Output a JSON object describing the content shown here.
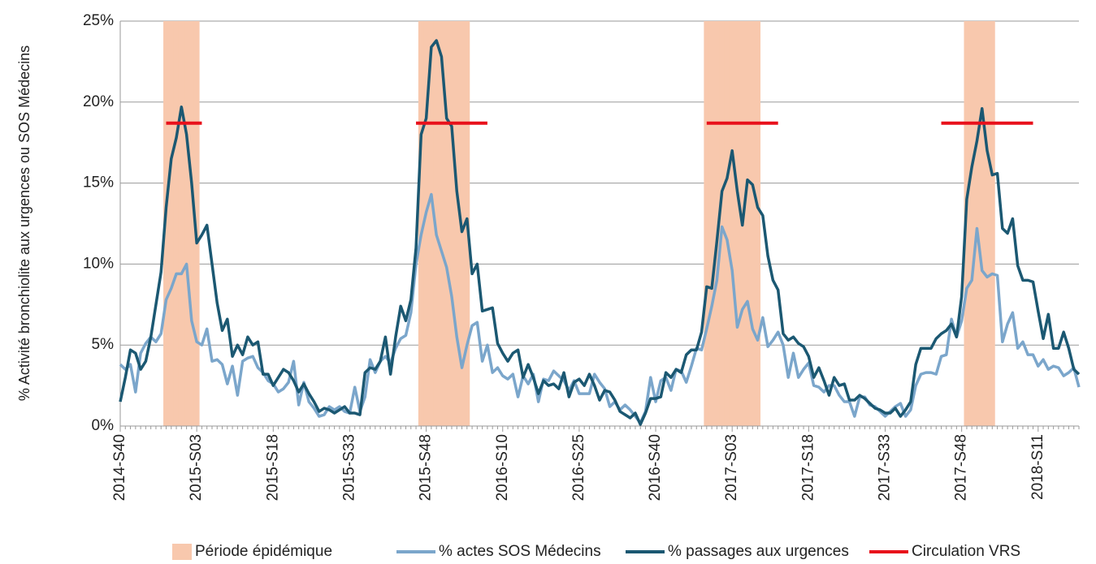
{
  "chart_data": {
    "type": "line",
    "y_label": "% Activité bronchiolite aux urgences ou SOS Médecins",
    "ylim": [
      0,
      25
    ],
    "yticks": [
      {
        "value": 0,
        "label": "0%"
      },
      {
        "value": 5,
        "label": "5%"
      },
      {
        "value": 10,
        "label": "10%"
      },
      {
        "value": 15,
        "label": "15%"
      },
      {
        "value": 20,
        "label": "20%"
      },
      {
        "value": 25,
        "label": "25%"
      }
    ],
    "grid": true,
    "legend": "bottom",
    "categories": [
      "2014-S40",
      null,
      null,
      null,
      null,
      null,
      null,
      null,
      null,
      null,
      null,
      null,
      null,
      null,
      null,
      "2015-S03",
      null,
      null,
      null,
      null,
      null,
      null,
      null,
      null,
      null,
      null,
      null,
      null,
      null,
      null,
      "2015-S18",
      null,
      null,
      null,
      null,
      null,
      null,
      null,
      null,
      null,
      null,
      null,
      null,
      null,
      null,
      "2015-S33",
      null,
      null,
      null,
      null,
      null,
      null,
      null,
      null,
      null,
      null,
      null,
      null,
      null,
      null,
      "2015-S48",
      null,
      null,
      null,
      null,
      null,
      null,
      null,
      null,
      null,
      null,
      null,
      null,
      null,
      null,
      "2016-S10",
      null,
      null,
      null,
      null,
      null,
      null,
      null,
      null,
      null,
      null,
      null,
      null,
      null,
      null,
      "2016-S25",
      null,
      null,
      null,
      null,
      null,
      null,
      null,
      null,
      null,
      null,
      null,
      null,
      null,
      null,
      "2016-S40",
      null,
      null,
      null,
      null,
      null,
      null,
      null,
      null,
      null,
      null,
      null,
      null,
      null,
      null,
      "2017-S03",
      null,
      null,
      null,
      null,
      null,
      null,
      null,
      null,
      null,
      null,
      null,
      null,
      null,
      null,
      "2017-S18",
      null,
      null,
      null,
      null,
      null,
      null,
      null,
      null,
      null,
      null,
      null,
      null,
      null,
      null,
      "2017-S33",
      null,
      null,
      null,
      null,
      null,
      null,
      null,
      null,
      null,
      null,
      null,
      null,
      null,
      null,
      "2017-S48",
      null,
      null,
      null,
      null,
      null,
      null,
      null,
      null,
      null,
      null,
      null,
      null,
      null,
      null,
      "2018-S11",
      null,
      null,
      null,
      null,
      null,
      null,
      null,
      null
    ],
    "series": [
      {
        "name": "Période épidémique",
        "color": "#f8c8ad",
        "kind": "bar",
        "values": [
          null,
          null,
          null,
          null,
          null,
          null,
          null,
          null,
          null,
          25,
          25,
          25,
          25,
          25,
          25,
          25,
          null,
          null,
          null,
          null,
          null,
          null,
          null,
          null,
          null,
          null,
          null,
          null,
          null,
          null,
          null,
          null,
          null,
          null,
          null,
          null,
          null,
          null,
          null,
          null,
          null,
          null,
          null,
          null,
          null,
          null,
          null,
          null,
          null,
          null,
          null,
          null,
          null,
          null,
          null,
          null,
          null,
          null,
          null,
          25,
          25,
          25,
          25,
          25,
          25,
          25,
          25,
          25,
          25,
          null,
          null,
          null,
          null,
          null,
          null,
          null,
          null,
          null,
          null,
          null,
          null,
          null,
          null,
          null,
          null,
          null,
          null,
          null,
          null,
          null,
          null,
          null,
          null,
          null,
          null,
          null,
          null,
          null,
          null,
          null,
          null,
          null,
          null,
          null,
          null,
          null,
          null,
          null,
          null,
          null,
          null,
          null,
          null,
          null,
          null,
          25,
          25,
          25,
          25,
          25,
          25,
          25,
          25,
          25,
          25,
          25,
          null,
          null,
          null,
          null,
          null,
          null,
          null,
          null,
          null,
          null,
          null,
          null,
          null,
          null,
          null,
          null,
          null,
          null,
          null,
          null,
          null,
          null,
          null,
          null,
          null,
          null,
          null,
          null,
          null,
          null,
          null,
          null,
          null,
          null,
          null,
          null,
          null,
          null,
          null,
          null,
          25,
          25,
          25,
          25,
          25,
          25,
          null,
          null,
          null,
          null,
          null,
          null,
          null,
          null,
          null,
          null,
          null,
          null,
          null,
          null,
          null,
          null,
          null
        ]
      },
      {
        "name": "% actes SOS Médecins",
        "color": "#7ba6cb",
        "kind": "line",
        "values": [
          3.8,
          3.5,
          3.8,
          2.1,
          4.5,
          5.1,
          5.5,
          5.2,
          5.7,
          7.8,
          8.5,
          9.4,
          9.4,
          10.0,
          6.5,
          5.2,
          5.0,
          6.0,
          4.0,
          4.1,
          3.8,
          2.6,
          3.7,
          1.9,
          4.0,
          4.2,
          4.3,
          3.6,
          3.3,
          2.8,
          2.6,
          2.1,
          2.3,
          2.7,
          4.0,
          1.3,
          2.7,
          1.5,
          1.1,
          0.6,
          0.7,
          1.2,
          1.0,
          1.2,
          0.9,
          0.8,
          2.4,
          0.9,
          1.8,
          4.1,
          3.3,
          4.0,
          4.3,
          3.9,
          4.8,
          5.4,
          5.6,
          7.0,
          10.0,
          11.8,
          13.2,
          14.3,
          11.8,
          10.8,
          9.8,
          8.0,
          5.5,
          3.6,
          5.0,
          6.2,
          6.4,
          4.0,
          5.0,
          3.3,
          3.6,
          3.1,
          2.9,
          3.2,
          1.8,
          3.1,
          2.6,
          3.2,
          1.5,
          2.9,
          2.8,
          3.4,
          3.1,
          2.8,
          2.2,
          2.8,
          2.0,
          2.0,
          2.0,
          3.2,
          2.7,
          2.3,
          1.2,
          1.5,
          1.0,
          1.3,
          1.0,
          0.6,
          0.2,
          0.9,
          3.0,
          1.5,
          2.8,
          3.0,
          2.2,
          3.5,
          3.4,
          2.7,
          3.7,
          4.8,
          4.7,
          6.0,
          7.4,
          9.0,
          12.3,
          11.5,
          9.6,
          6.1,
          7.2,
          7.7,
          6.0,
          5.3,
          6.7,
          4.9,
          5.3,
          5.8,
          5.0,
          3.0,
          4.5,
          3.0,
          3.5,
          3.9,
          2.5,
          2.4,
          2.1,
          2.5,
          2.5,
          1.9,
          1.5,
          1.5,
          0.6,
          1.8,
          1.8,
          1.3,
          1.2,
          0.9,
          0.6,
          0.9,
          1.2,
          1.4,
          0.6,
          1.0,
          2.5,
          3.2,
          3.3,
          3.3,
          3.2,
          4.3,
          4.4,
          6.6,
          5.5,
          6.5,
          8.5,
          9.0,
          12.2,
          9.6,
          9.2,
          9.4,
          9.3,
          5.2,
          6.3,
          7.0,
          4.8,
          5.2,
          4.4,
          4.4,
          3.7,
          4.1,
          3.5,
          3.7,
          3.6,
          3.1,
          3.3,
          3.6,
          2.4
        ]
      },
      {
        "name": "% passages aux urgences",
        "color": "#1b5872",
        "kind": "line",
        "values": [
          1.5,
          3.0,
          4.7,
          4.5,
          3.5,
          4.0,
          5.5,
          7.5,
          9.5,
          13.5,
          16.5,
          17.8,
          19.7,
          18.0,
          15.0,
          11.3,
          11.8,
          12.4,
          10.0,
          7.6,
          5.9,
          6.6,
          4.3,
          5.0,
          4.4,
          5.5,
          5.0,
          5.2,
          3.2,
          3.2,
          2.5,
          3.0,
          3.5,
          3.3,
          2.8,
          2.1,
          2.6,
          2.0,
          1.5,
          0.9,
          1.1,
          1.0,
          0.8,
          1.0,
          1.2,
          0.8,
          0.8,
          0.7,
          3.3,
          3.6,
          3.5,
          4.0,
          5.5,
          3.2,
          5.5,
          7.4,
          6.5,
          7.8,
          11.0,
          18.0,
          19.0,
          23.4,
          23.8,
          22.8,
          19.0,
          18.5,
          14.5,
          12.0,
          12.8,
          9.4,
          10.0,
          7.1,
          7.2,
          7.3,
          5.1,
          4.5,
          4.0,
          4.5,
          4.7,
          3.0,
          3.8,
          3.0,
          2.0,
          2.8,
          2.5,
          2.6,
          2.3,
          3.3,
          1.8,
          2.7,
          2.9,
          2.5,
          3.2,
          2.5,
          1.6,
          2.2,
          2.1,
          1.6,
          0.9,
          0.7,
          0.5,
          0.8,
          0.1,
          0.8,
          1.7,
          1.7,
          1.8,
          3.3,
          3.0,
          3.5,
          3.3,
          4.4,
          4.7,
          4.7,
          5.8,
          8.6,
          8.5,
          11.4,
          14.5,
          15.3,
          17.0,
          14.5,
          12.4,
          15.2,
          14.9,
          13.5,
          13.0,
          10.5,
          9.0,
          8.4,
          5.7,
          5.3,
          5.5,
          5.1,
          4.9,
          4.3,
          3.0,
          3.6,
          2.8,
          1.9,
          3.0,
          2.5,
          2.6,
          1.6,
          1.6,
          1.9,
          1.7,
          1.4,
          1.1,
          1.0,
          0.8,
          0.8,
          1.1,
          0.6,
          1.0,
          1.5,
          3.8,
          4.8,
          4.8,
          4.8,
          5.4,
          5.7,
          5.9,
          6.3,
          5.5,
          8.0,
          14.0,
          16.0,
          17.6,
          19.6,
          17.0,
          15.5,
          15.6,
          12.2,
          11.9,
          12.8,
          9.9,
          9.0,
          9.0,
          8.9,
          7.1,
          5.4,
          6.9,
          4.8,
          4.8,
          5.8,
          4.8,
          3.5,
          3.2
        ]
      },
      {
        "name": "Circulation VRS",
        "color": "#e8111b",
        "kind": "line",
        "values": [
          null,
          null,
          null,
          null,
          null,
          null,
          null,
          null,
          null,
          18.7,
          18.7,
          18.7,
          18.7,
          18.7,
          18.7,
          18.7,
          18.7,
          null,
          null,
          null,
          null,
          null,
          null,
          null,
          null,
          null,
          null,
          null,
          null,
          null,
          null,
          null,
          null,
          null,
          null,
          null,
          null,
          null,
          null,
          null,
          null,
          null,
          null,
          null,
          null,
          null,
          null,
          null,
          null,
          null,
          null,
          null,
          null,
          null,
          null,
          null,
          null,
          null,
          18.7,
          18.7,
          18.7,
          18.7,
          18.7,
          18.7,
          18.7,
          18.7,
          18.7,
          18.7,
          18.7,
          18.7,
          18.7,
          18.7,
          18.7,
          null,
          null,
          null,
          null,
          null,
          null,
          null,
          null,
          null,
          null,
          null,
          null,
          null,
          null,
          null,
          null,
          null,
          null,
          null,
          null,
          null,
          null,
          null,
          null,
          null,
          null,
          null,
          null,
          null,
          null,
          null,
          null,
          null,
          null,
          null,
          null,
          null,
          null,
          null,
          null,
          null,
          null,
          18.7,
          18.7,
          18.7,
          18.7,
          18.7,
          18.7,
          18.7,
          18.7,
          18.7,
          18.7,
          18.7,
          18.7,
          18.7,
          18.7,
          18.7,
          null,
          null,
          null,
          null,
          null,
          null,
          null,
          null,
          null,
          null,
          null,
          null,
          null,
          null,
          null,
          null,
          null,
          null,
          null,
          null,
          null,
          null,
          null,
          null,
          null,
          null,
          null,
          null,
          null,
          null,
          null,
          18.7,
          18.7,
          18.7,
          18.7,
          18.7,
          18.7,
          18.7,
          18.7,
          18.7,
          18.7,
          18.7,
          18.7,
          18.7,
          18.7,
          18.7,
          18.7,
          18.7,
          18.7,
          18.7,
          null,
          null,
          null,
          null,
          null,
          null,
          null,
          null,
          null
        ]
      }
    ]
  }
}
